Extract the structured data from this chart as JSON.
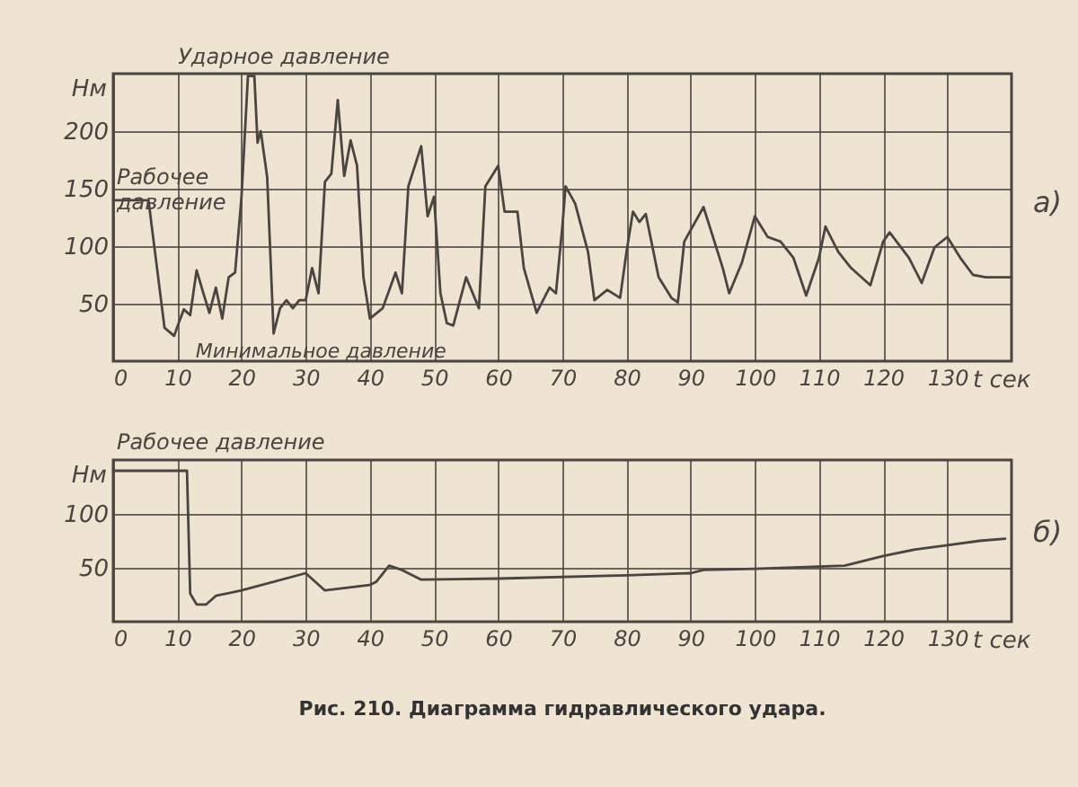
{
  "chart_data": [
    {
      "type": "line",
      "xlabel": "t сек",
      "ylabel": "Нм",
      "grid": true,
      "line_style": "solid",
      "marker": "none",
      "xlim": [
        0,
        140
      ],
      "ylim": [
        0,
        250
      ],
      "xticks": [
        0,
        10,
        20,
        30,
        40,
        50,
        60,
        70,
        80,
        90,
        100,
        110,
        120,
        130
      ],
      "yticks": [
        50,
        100,
        150,
        200
      ],
      "x": [
        0,
        5.5,
        8,
        9.5,
        10,
        11,
        12,
        13,
        14,
        15,
        16,
        17,
        18,
        19,
        20,
        21,
        22,
        22.5,
        23,
        24,
        25,
        26,
        27,
        28,
        29,
        30,
        31,
        32,
        33,
        34,
        35,
        36,
        37,
        38,
        39,
        40,
        42,
        44,
        45,
        46,
        48,
        49,
        50,
        51,
        52,
        53,
        55,
        57,
        58,
        60,
        61,
        63,
        64,
        66,
        68,
        69,
        70,
        70.5,
        72,
        74,
        75,
        77,
        79,
        80,
        81,
        82,
        83,
        85,
        87,
        88,
        89,
        92,
        95,
        96,
        98,
        100,
        102,
        104,
        106,
        108,
        110,
        111,
        113,
        115,
        118,
        120,
        121,
        124,
        126,
        128,
        130,
        132,
        134,
        136,
        140
      ],
      "series": [
        {
          "color": "#4a4540",
          "values": [
            140,
            140,
            29,
            22,
            30,
            45,
            40,
            79,
            60,
            42,
            64,
            37,
            73,
            77,
            143,
            248,
            248,
            190,
            200,
            160,
            24,
            46,
            53,
            46,
            53,
            53,
            81,
            59,
            156,
            163,
            227,
            161,
            192,
            170,
            73,
            37,
            46,
            77,
            59,
            152,
            187,
            126,
            143,
            59,
            33,
            31,
            73,
            46,
            152,
            170,
            130,
            130,
            81,
            42,
            64,
            59,
            117,
            152,
            137,
            95,
            53,
            62,
            55,
            95,
            130,
            121,
            128,
            73,
            55,
            51,
            104,
            134,
            81,
            59,
            86,
            126,
            108,
            104,
            90,
            57,
            90,
            117,
            95,
            81,
            66,
            104,
            112,
            90,
            68,
            99,
            108,
            90,
            75,
            73,
            73
          ]
        }
      ],
      "annotations": [
        {
          "text": "Ударное давление",
          "x": 21,
          "y": 248
        },
        {
          "text": "Рабочее давление",
          "x": 0,
          "y": 140
        },
        {
          "text": "Минимальное давление",
          "x": 9.5,
          "y": 20
        },
        "а)"
      ]
    },
    {
      "type": "line",
      "xlabel": "t сек",
      "ylabel": "Нм",
      "grid": true,
      "line_style": "solid",
      "marker": "none",
      "xlim": [
        0,
        140
      ],
      "ylim": [
        0,
        150
      ],
      "xticks": [
        0,
        10,
        20,
        30,
        40,
        50,
        60,
        70,
        80,
        90,
        100,
        110,
        120,
        130
      ],
      "yticks": [
        50,
        100
      ],
      "title": "Рис. 210. Диаграмма гидравлического удара.",
      "x": [
        0,
        11.5,
        12,
        13,
        14.5,
        16,
        20,
        30,
        33,
        40,
        41,
        43,
        45,
        48,
        60,
        80,
        90,
        92,
        100,
        114,
        120,
        125,
        130,
        135,
        139
      ],
      "series": [
        {
          "color": "#4a4540",
          "values": [
            140,
            140,
            26,
            16,
            16,
            24,
            29,
            45,
            29,
            34,
            37,
            52,
            48,
            39,
            40,
            43,
            45,
            48,
            49,
            52,
            61,
            67,
            71,
            75,
            77
          ]
        }
      ],
      "annotations": [
        {
          "text": "Рабочее давление",
          "x": 0,
          "y": 140
        },
        "б)"
      ]
    }
  ]
}
